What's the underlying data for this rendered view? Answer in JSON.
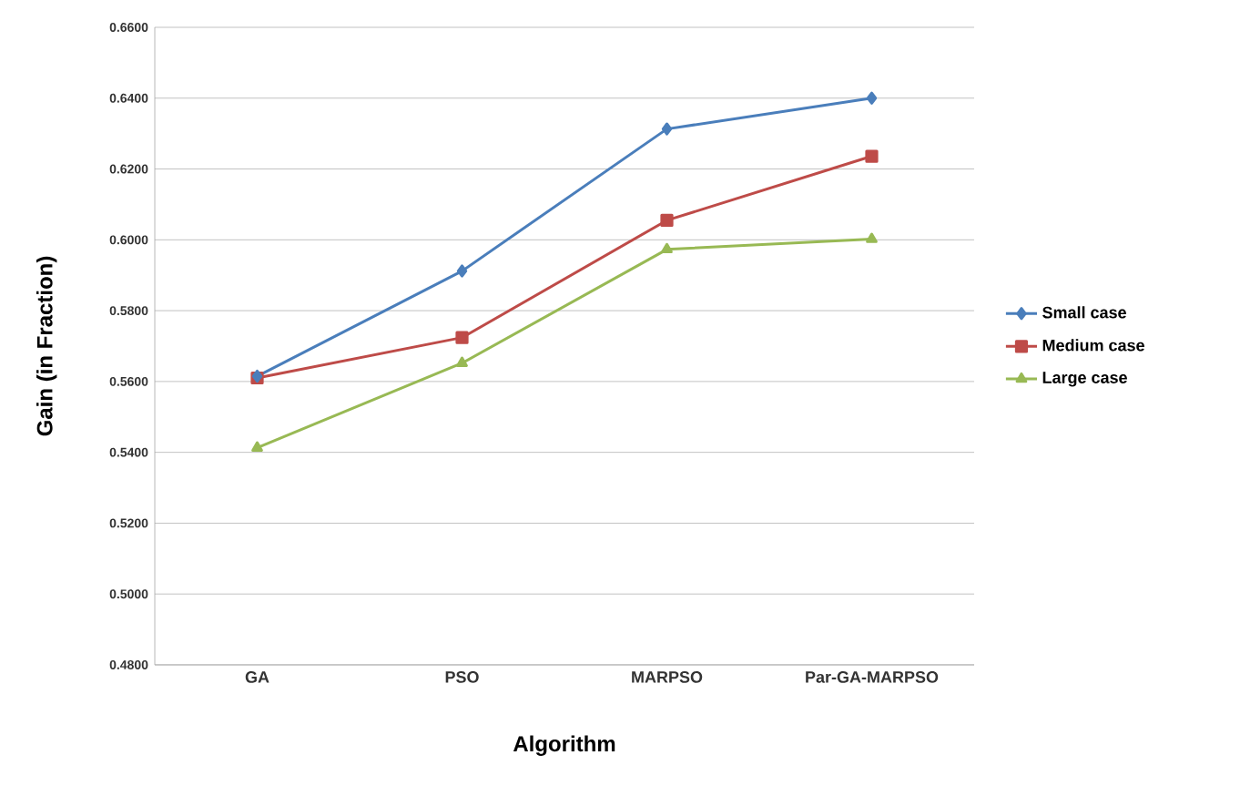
{
  "chart_data": {
    "type": "line",
    "xlabel": "Algorithm",
    "ylabel": "Gain (in Fraction)",
    "categories": [
      "GA",
      "PSO",
      "MARPSO",
      "Par-GA-MARPSO"
    ],
    "series": [
      {
        "name": "Small case",
        "color": "#4a7ebb",
        "marker": "diamond",
        "values": [
          0.5615,
          0.5912,
          0.6313,
          0.64
        ]
      },
      {
        "name": "Medium case",
        "color": "#be4b48",
        "marker": "square",
        "values": [
          0.561,
          0.5724,
          0.6055,
          0.6236
        ]
      },
      {
        "name": "Large case",
        "color": "#98b954",
        "marker": "triangle",
        "values": [
          0.5413,
          0.5652,
          0.5973,
          0.6002
        ]
      }
    ],
    "ylim": [
      0.48,
      0.66
    ],
    "yticks": [
      {
        "value": 0.48,
        "label": "0.4800"
      },
      {
        "value": 0.5,
        "label": "0.5000"
      },
      {
        "value": 0.52,
        "label": "0.5200"
      },
      {
        "value": 0.54,
        "label": "0.5400"
      },
      {
        "value": 0.56,
        "label": "0.5600"
      },
      {
        "value": 0.58,
        "label": "0.5800"
      },
      {
        "value": 0.6,
        "label": "0.6000"
      },
      {
        "value": 0.62,
        "label": "0.6200"
      },
      {
        "value": 0.64,
        "label": "0.6400"
      },
      {
        "value": 0.66,
        "label": "0.6600"
      }
    ],
    "grid": "y",
    "legend": "right",
    "line_style": "solid"
  }
}
